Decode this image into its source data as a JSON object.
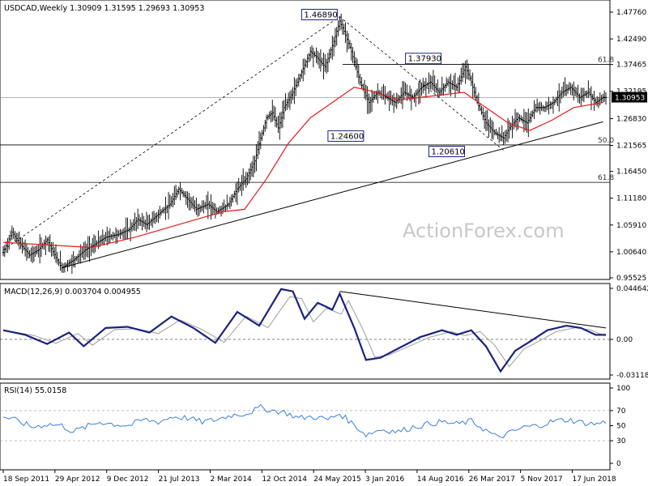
{
  "chart_data": {
    "type": "candlestick",
    "symbol": "USDCAD",
    "timeframe": "Weekly",
    "ohlc_header": {
      "open": "1.30909",
      "high": "1.31595",
      "low": "1.29693",
      "close": "1.30953"
    },
    "last_price": "1.30953",
    "price_axis": {
      "ticks": [
        "1.47760",
        "1.42490",
        "1.37465",
        "1.32195",
        "1.26830",
        "1.21565",
        "1.16450",
        "1.11180",
        "1.05910",
        "1.00640",
        "0.95525"
      ],
      "range": [
        0.95525,
        1.4776
      ]
    },
    "x_axis": {
      "ticks": [
        "18 Sep 2011",
        "29 Apr 2012",
        "9 Dec 2012",
        "21 Jul 2013",
        "2 Mar 2014",
        "12 Oct 2014",
        "24 May 2015",
        "3 Jan 2016",
        "14 Aug 2016",
        "26 Mar 2017",
        "5 Nov 2017",
        "17 Jun 2018"
      ]
    },
    "annotations": [
      {
        "text": "1.46890",
        "value": 1.4689
      },
      {
        "text": "1.37930",
        "value": 1.3793
      },
      {
        "text": "1.24600",
        "value": 1.246
      },
      {
        "text": "1.20610",
        "value": 1.2061
      }
    ],
    "fib_levels": [
      {
        "label": "61.8",
        "value": 1.375
      },
      {
        "label": "50.0",
        "value": 1.2165
      },
      {
        "label": "61.8",
        "value": 1.143
      }
    ],
    "price_path_approx": [
      [
        0,
        1.005
      ],
      [
        6,
        1.045
      ],
      [
        12,
        1.02
      ],
      [
        18,
        1.0
      ],
      [
        24,
        1.01
      ],
      [
        30,
        1.03
      ],
      [
        36,
        0.995
      ],
      [
        40,
        0.975
      ],
      [
        48,
        0.99
      ],
      [
        56,
        1.01
      ],
      [
        62,
        1.02
      ],
      [
        70,
        1.035
      ],
      [
        78,
        1.04
      ],
      [
        86,
        1.05
      ],
      [
        92,
        1.07
      ],
      [
        98,
        1.06
      ],
      [
        106,
        1.08
      ],
      [
        114,
        1.1
      ],
      [
        120,
        1.13
      ],
      [
        126,
        1.11
      ],
      [
        132,
        1.09
      ],
      [
        140,
        1.1
      ],
      [
        146,
        1.085
      ],
      [
        154,
        1.1
      ],
      [
        160,
        1.13
      ],
      [
        166,
        1.15
      ],
      [
        172,
        1.185
      ],
      [
        176,
        1.23
      ],
      [
        180,
        1.27
      ],
      [
        184,
        1.28
      ],
      [
        188,
        1.25
      ],
      [
        192,
        1.29
      ],
      [
        198,
        1.32
      ],
      [
        204,
        1.36
      ],
      [
        210,
        1.4
      ],
      [
        214,
        1.39
      ],
      [
        220,
        1.37
      ],
      [
        226,
        1.42
      ],
      [
        230,
        1.46
      ],
      [
        233,
        1.44
      ],
      [
        238,
        1.4
      ],
      [
        244,
        1.34
      ],
      [
        250,
        1.3
      ],
      [
        256,
        1.32
      ],
      [
        262,
        1.31
      ],
      [
        268,
        1.3
      ],
      [
        274,
        1.32
      ],
      [
        280,
        1.31
      ],
      [
        286,
        1.33
      ],
      [
        292,
        1.34
      ],
      [
        298,
        1.32
      ],
      [
        304,
        1.34
      ],
      [
        310,
        1.33
      ],
      [
        316,
        1.37
      ],
      [
        320,
        1.34
      ],
      [
        324,
        1.3
      ],
      [
        330,
        1.26
      ],
      [
        336,
        1.24
      ],
      [
        342,
        1.23
      ],
      [
        346,
        1.25
      ],
      [
        352,
        1.27
      ],
      [
        358,
        1.26
      ],
      [
        364,
        1.29
      ],
      [
        370,
        1.29
      ],
      [
        376,
        1.3
      ],
      [
        382,
        1.32
      ],
      [
        388,
        1.33
      ],
      [
        394,
        1.31
      ],
      [
        400,
        1.32
      ],
      [
        405,
        1.3
      ],
      [
        410,
        1.31
      ]
    ],
    "sma_path_approx": [
      [
        0,
        1.025
      ],
      [
        30,
        1.02
      ],
      [
        60,
        1.015
      ],
      [
        90,
        1.035
      ],
      [
        120,
        1.06
      ],
      [
        150,
        1.085
      ],
      [
        165,
        1.09
      ],
      [
        180,
        1.15
      ],
      [
        195,
        1.22
      ],
      [
        210,
        1.27
      ],
      [
        225,
        1.3
      ],
      [
        240,
        1.33
      ],
      [
        255,
        1.32
      ],
      [
        270,
        1.305
      ],
      [
        285,
        1.31
      ],
      [
        300,
        1.315
      ],
      [
        315,
        1.32
      ],
      [
        330,
        1.29
      ],
      [
        345,
        1.26
      ],
      [
        360,
        1.245
      ],
      [
        375,
        1.265
      ],
      [
        390,
        1.29
      ],
      [
        410,
        1.3
      ]
    ],
    "trendline": {
      "from": [
        40,
        0.975
      ],
      "to": [
        410,
        1.262
      ]
    },
    "dashed_lines": [
      {
        "from": [
          0,
          1.01
        ],
        "to": [
          230,
          1.4689
        ]
      },
      {
        "from": [
          230,
          1.4689
        ],
        "to": [
          342,
          1.2061
        ]
      }
    ],
    "macd": {
      "label": "MACD(12,26,9) 0.003704 0.004955",
      "axis_ticks": [
        "0.044642",
        "0.00",
        "-0.031183"
      ],
      "range": [
        -0.031183,
        0.044642
      ],
      "macd_path_approx": [
        [
          0,
          0.008
        ],
        [
          15,
          0.004
        ],
        [
          30,
          -0.004
        ],
        [
          45,
          0.006
        ],
        [
          55,
          -0.006
        ],
        [
          70,
          0.01
        ],
        [
          85,
          0.011
        ],
        [
          100,
          0.006
        ],
        [
          115,
          0.02
        ],
        [
          130,
          0.01
        ],
        [
          145,
          -0.003
        ],
        [
          160,
          0.024
        ],
        [
          175,
          0.012
        ],
        [
          190,
          0.044
        ],
        [
          198,
          0.042
        ],
        [
          206,
          0.018
        ],
        [
          215,
          0.032
        ],
        [
          225,
          0.026
        ],
        [
          230,
          0.04
        ],
        [
          240,
          0.01
        ],
        [
          248,
          -0.018
        ],
        [
          258,
          -0.016
        ],
        [
          270,
          -0.008
        ],
        [
          285,
          0.002
        ],
        [
          300,
          0.008
        ],
        [
          310,
          0.004
        ],
        [
          320,
          0.008
        ],
        [
          330,
          -0.006
        ],
        [
          340,
          -0.028
        ],
        [
          350,
          -0.01
        ],
        [
          360,
          -0.002
        ],
        [
          372,
          0.008
        ],
        [
          385,
          0.012
        ],
        [
          395,
          0.01
        ],
        [
          405,
          0.004
        ],
        [
          412,
          0.004
        ]
      ],
      "trendline": {
        "from": [
          230,
          0.042
        ],
        "to": [
          412,
          0.01
        ]
      }
    },
    "rsi": {
      "label": "RSI(14) 55.0158",
      "axis_ticks": [
        "100",
        "70",
        "50",
        "30",
        "0"
      ],
      "levels": [
        70,
        30
      ],
      "rsi_path_approx": [
        [
          0,
          62
        ],
        [
          10,
          56
        ],
        [
          20,
          48
        ],
        [
          30,
          52
        ],
        [
          40,
          50
        ],
        [
          48,
          42
        ],
        [
          56,
          48
        ],
        [
          66,
          55
        ],
        [
          76,
          52
        ],
        [
          86,
          50
        ],
        [
          96,
          58
        ],
        [
          106,
          55
        ],
        [
          116,
          62
        ],
        [
          126,
          60
        ],
        [
          136,
          55
        ],
        [
          146,
          58
        ],
        [
          156,
          64
        ],
        [
          166,
          66
        ],
        [
          176,
          74
        ],
        [
          184,
          70
        ],
        [
          192,
          68
        ],
        [
          202,
          60
        ],
        [
          212,
          62
        ],
        [
          222,
          58
        ],
        [
          230,
          66
        ],
        [
          238,
          54
        ],
        [
          248,
          38
        ],
        [
          258,
          45
        ],
        [
          270,
          42
        ],
        [
          280,
          48
        ],
        [
          290,
          52
        ],
        [
          300,
          55
        ],
        [
          310,
          52
        ],
        [
          320,
          56
        ],
        [
          330,
          44
        ],
        [
          338,
          34
        ],
        [
          346,
          40
        ],
        [
          356,
          48
        ],
        [
          366,
          50
        ],
        [
          376,
          56
        ],
        [
          386,
          58
        ],
        [
          396,
          54
        ],
        [
          405,
          52
        ],
        [
          412,
          55
        ]
      ]
    },
    "watermark": "ActionForex.com",
    "colors": {
      "candles": "#000000",
      "sma": "#e41a1c",
      "macd": "#1a237e",
      "signal": "#9e9e9e",
      "rsi": "#3d7fd6",
      "last_price_bg": "#000000"
    }
  }
}
